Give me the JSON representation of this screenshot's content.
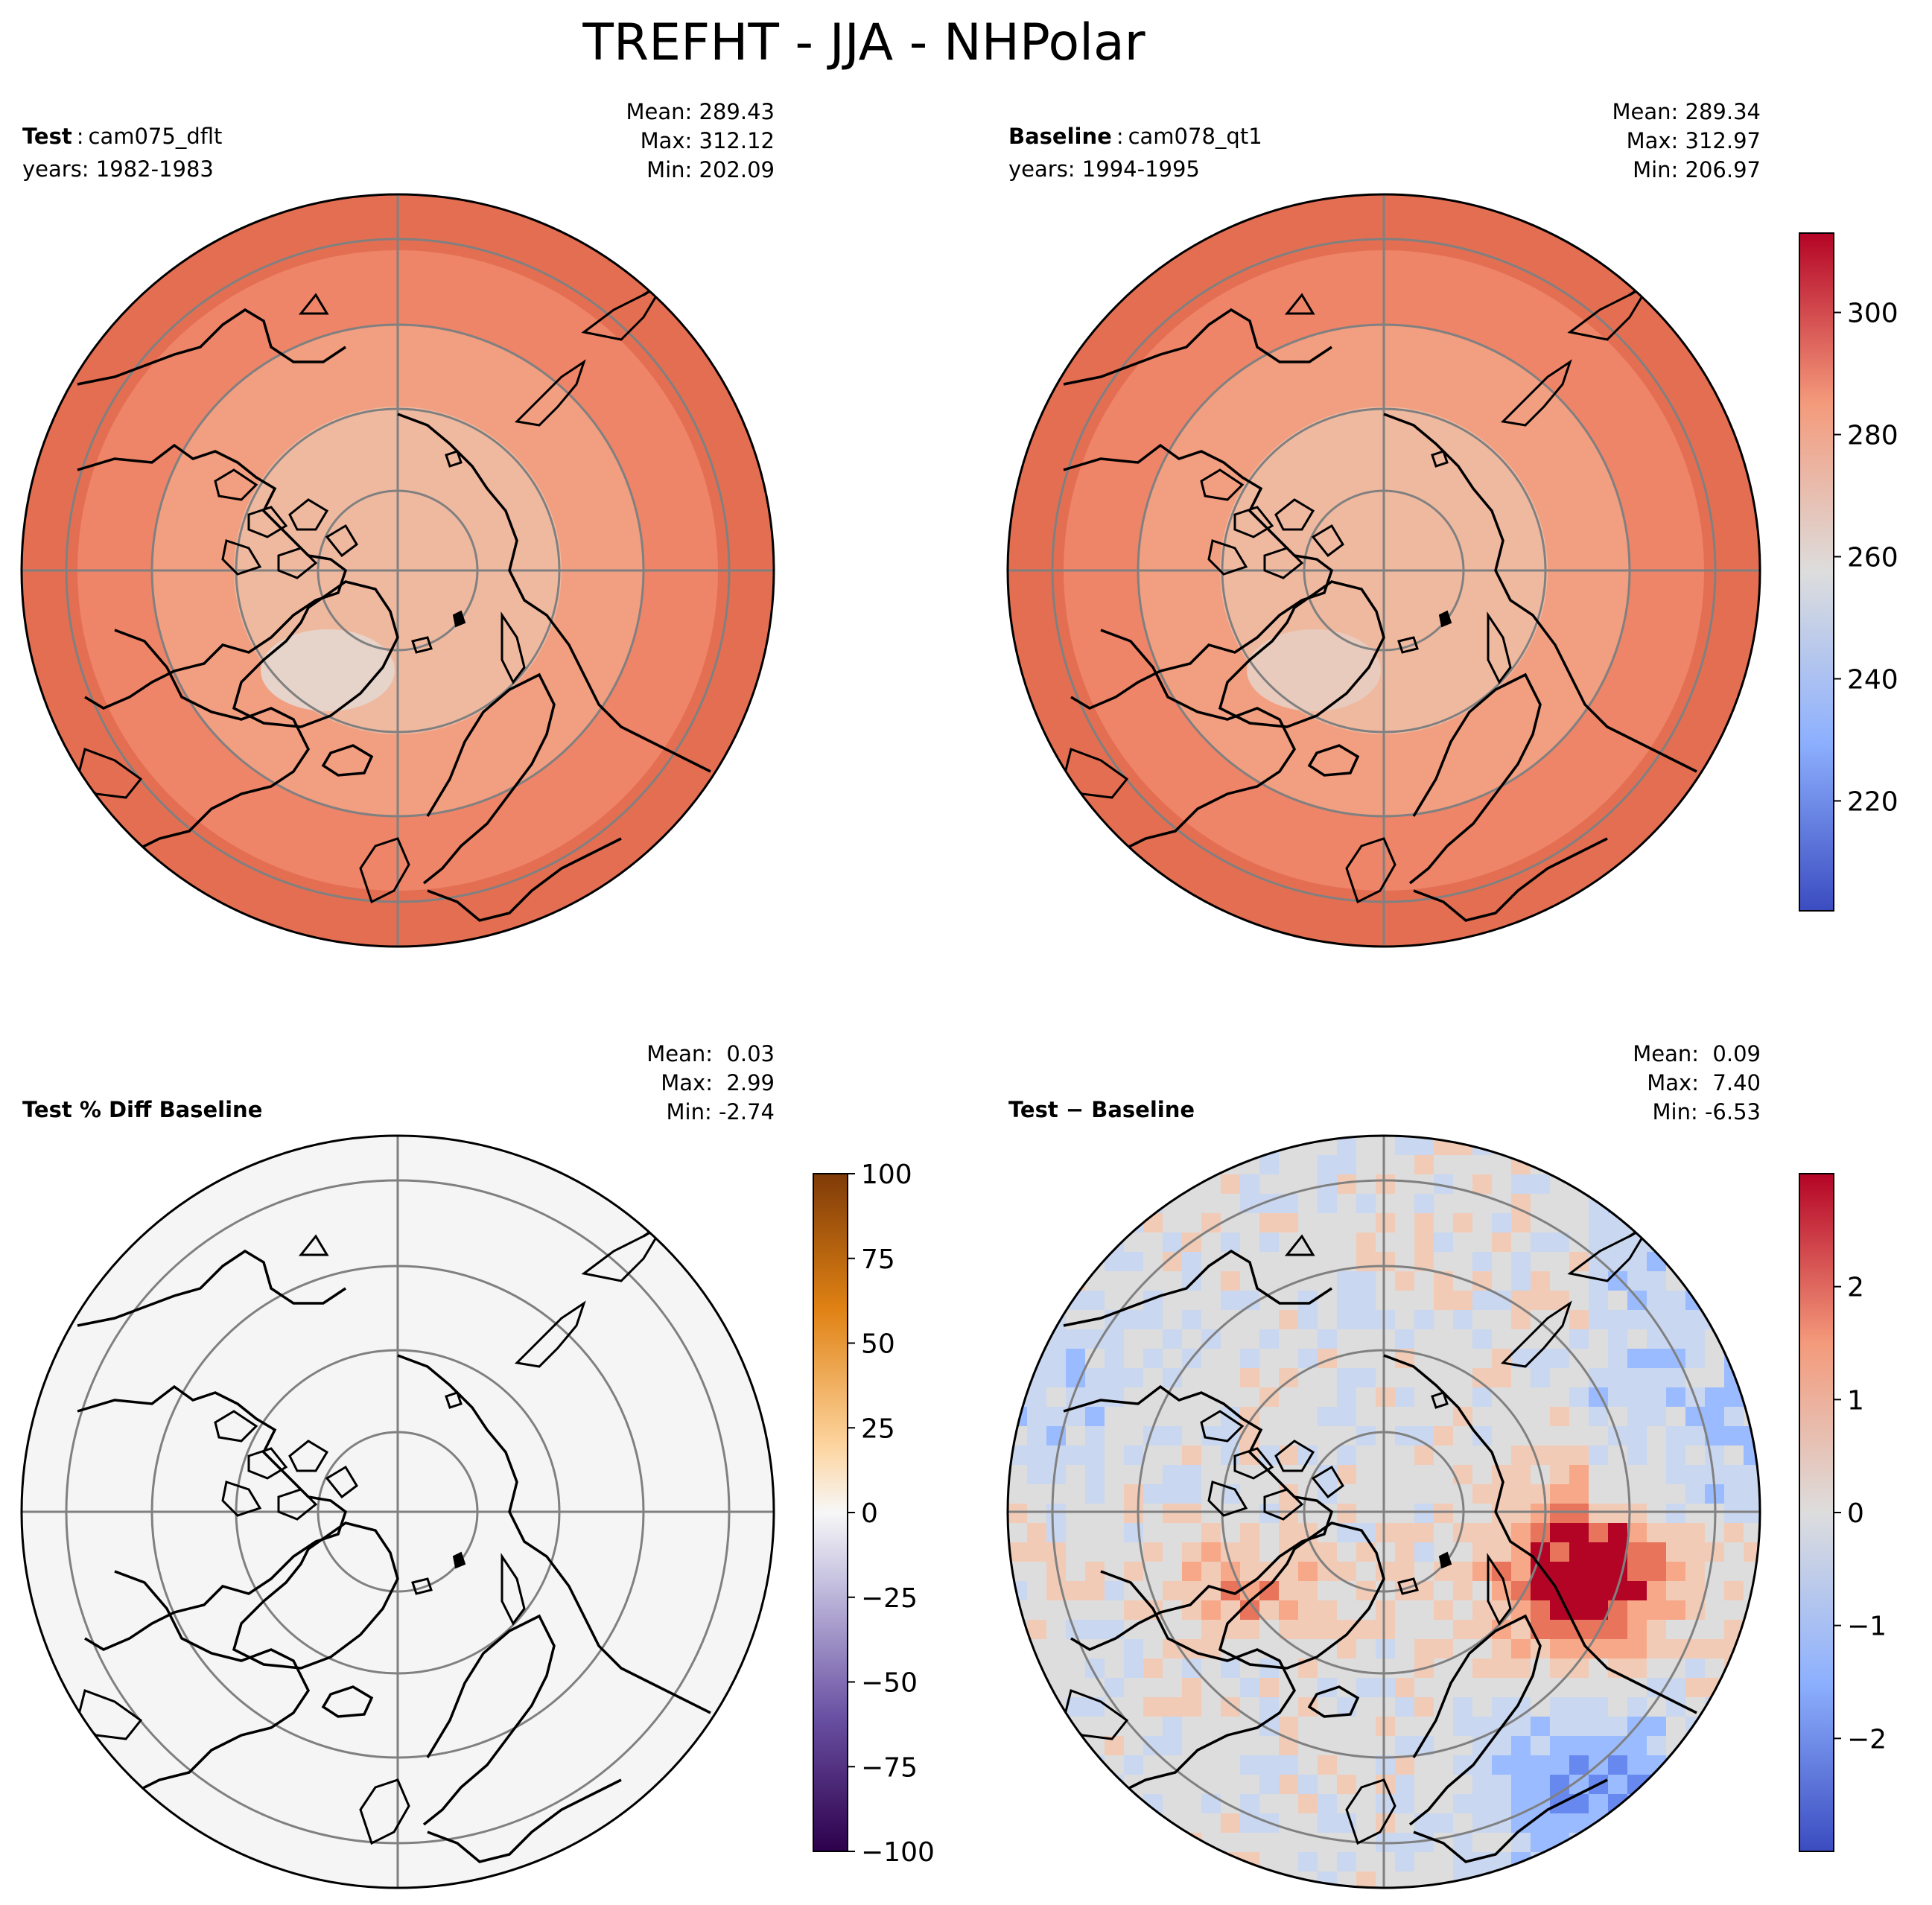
{
  "figure": {
    "title": "TREFHT - JJA - NHPolar"
  },
  "panels": {
    "test": {
      "label": "Test",
      "case": "cam075_dflt",
      "years": "years: 1982-1983",
      "stats": {
        "mean": "Mean: 289.43",
        "max": "Max: 312.12",
        "min": "Min: 202.09"
      }
    },
    "baseline": {
      "label": "Baseline",
      "case": "cam078_qt1",
      "years": "years: 1994-1995",
      "stats": {
        "mean": "Mean: 289.34",
        "max": "Max: 312.97",
        "min": "Min: 206.97"
      }
    },
    "pctdiff": {
      "label": "Test % Diff Baseline",
      "stats": {
        "mean": "Mean:  0.03",
        "max": "Max:  2.99",
        "min": "Min: -2.74"
      }
    },
    "diff": {
      "label": "Test − Baseline",
      "stats": {
        "mean": "Mean:  0.09",
        "max": "Max:  7.40",
        "min": "Min: -6.53"
      }
    }
  },
  "colorbars": {
    "temperature": {
      "cmap": "coolwarm",
      "range": [
        202,
        313
      ],
      "ticks": [
        "220",
        "240",
        "260",
        "280",
        "300"
      ]
    },
    "pctdiff": {
      "cmap": "PuOr_r",
      "range": [
        -100,
        100
      ],
      "ticks": [
        "100",
        "75",
        "50",
        "25",
        "0",
        "−25",
        "−50",
        "−75",
        "−100"
      ]
    },
    "diff": {
      "cmap": "coolwarm",
      "range": [
        -3,
        3
      ],
      "ticks": [
        "2",
        "1",
        "0",
        "−1",
        "−2"
      ]
    }
  },
  "colors": {
    "warm": "#e8735b",
    "mid": "#dddddd",
    "cold": "#3b4cc0",
    "pctdiff_fill": "#f5f5f5",
    "gridline": "#808080",
    "coastline": "#000000"
  }
}
